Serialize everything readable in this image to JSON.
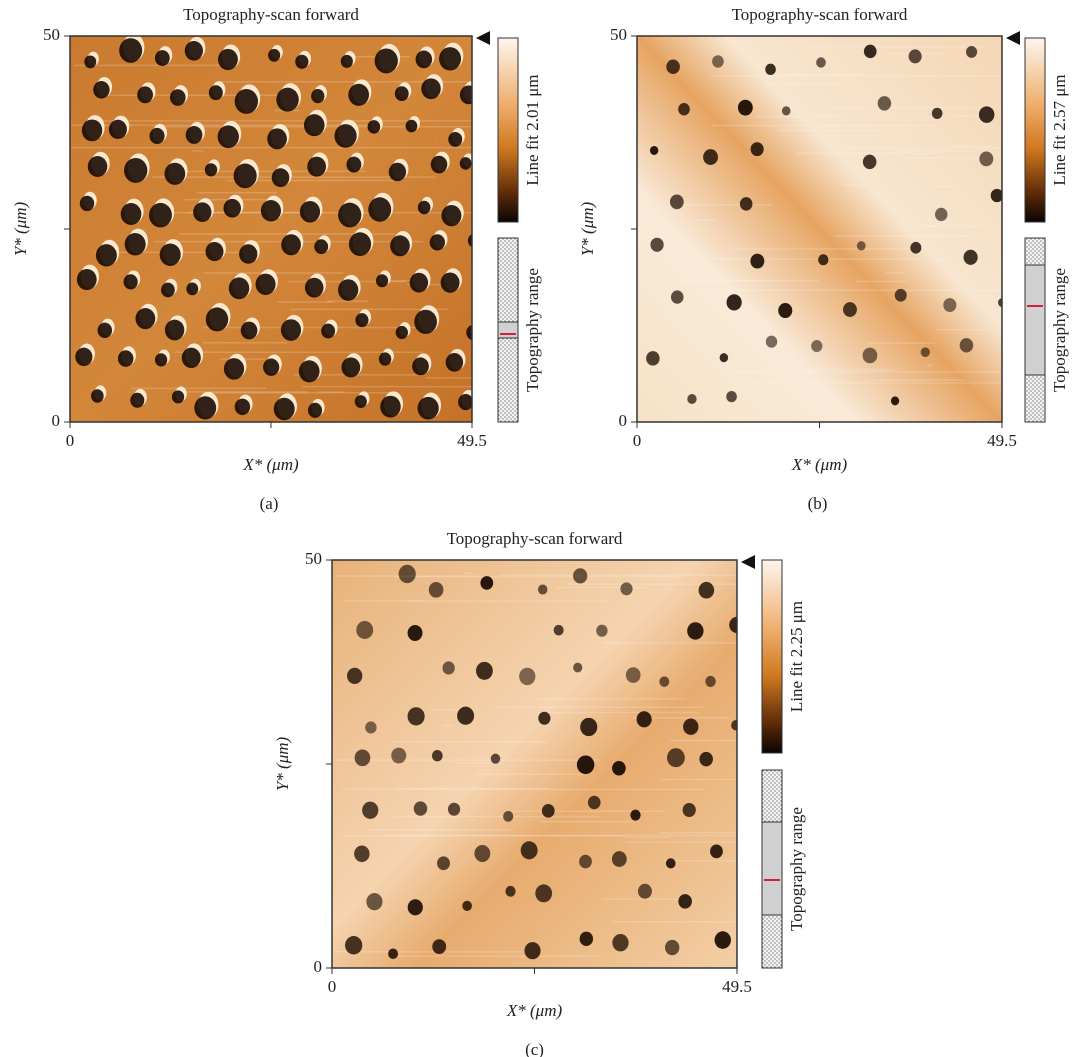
{
  "panels": [
    {
      "title": "Topography-scan forward",
      "xlabel": "X* (μm)",
      "ylabel": "Y* (μm)",
      "xticks": [
        0,
        49.5
      ],
      "yticks": [
        0,
        50
      ],
      "colorbar_label": "Line fit 2.01 μm",
      "range_label": "Topography range",
      "caption": "(a)"
    },
    {
      "title": "Topography-scan forward",
      "xlabel": "X* (μm)",
      "ylabel": "Y* (μm)",
      "xticks": [
        0,
        49.5
      ],
      "yticks": [
        0,
        50
      ],
      "colorbar_label": "Line fit 2.57 μm",
      "range_label": "Topography range",
      "caption": "(b)"
    },
    {
      "title": "Topography-scan forward",
      "xlabel": "X* (μm)",
      "ylabel": "Y* (μm)",
      "xticks": [
        0,
        49.5
      ],
      "yticks": [
        0,
        50
      ],
      "colorbar_label": "Line fit 2.25 μm",
      "range_label": "Topography range",
      "caption": "(c)"
    }
  ]
}
